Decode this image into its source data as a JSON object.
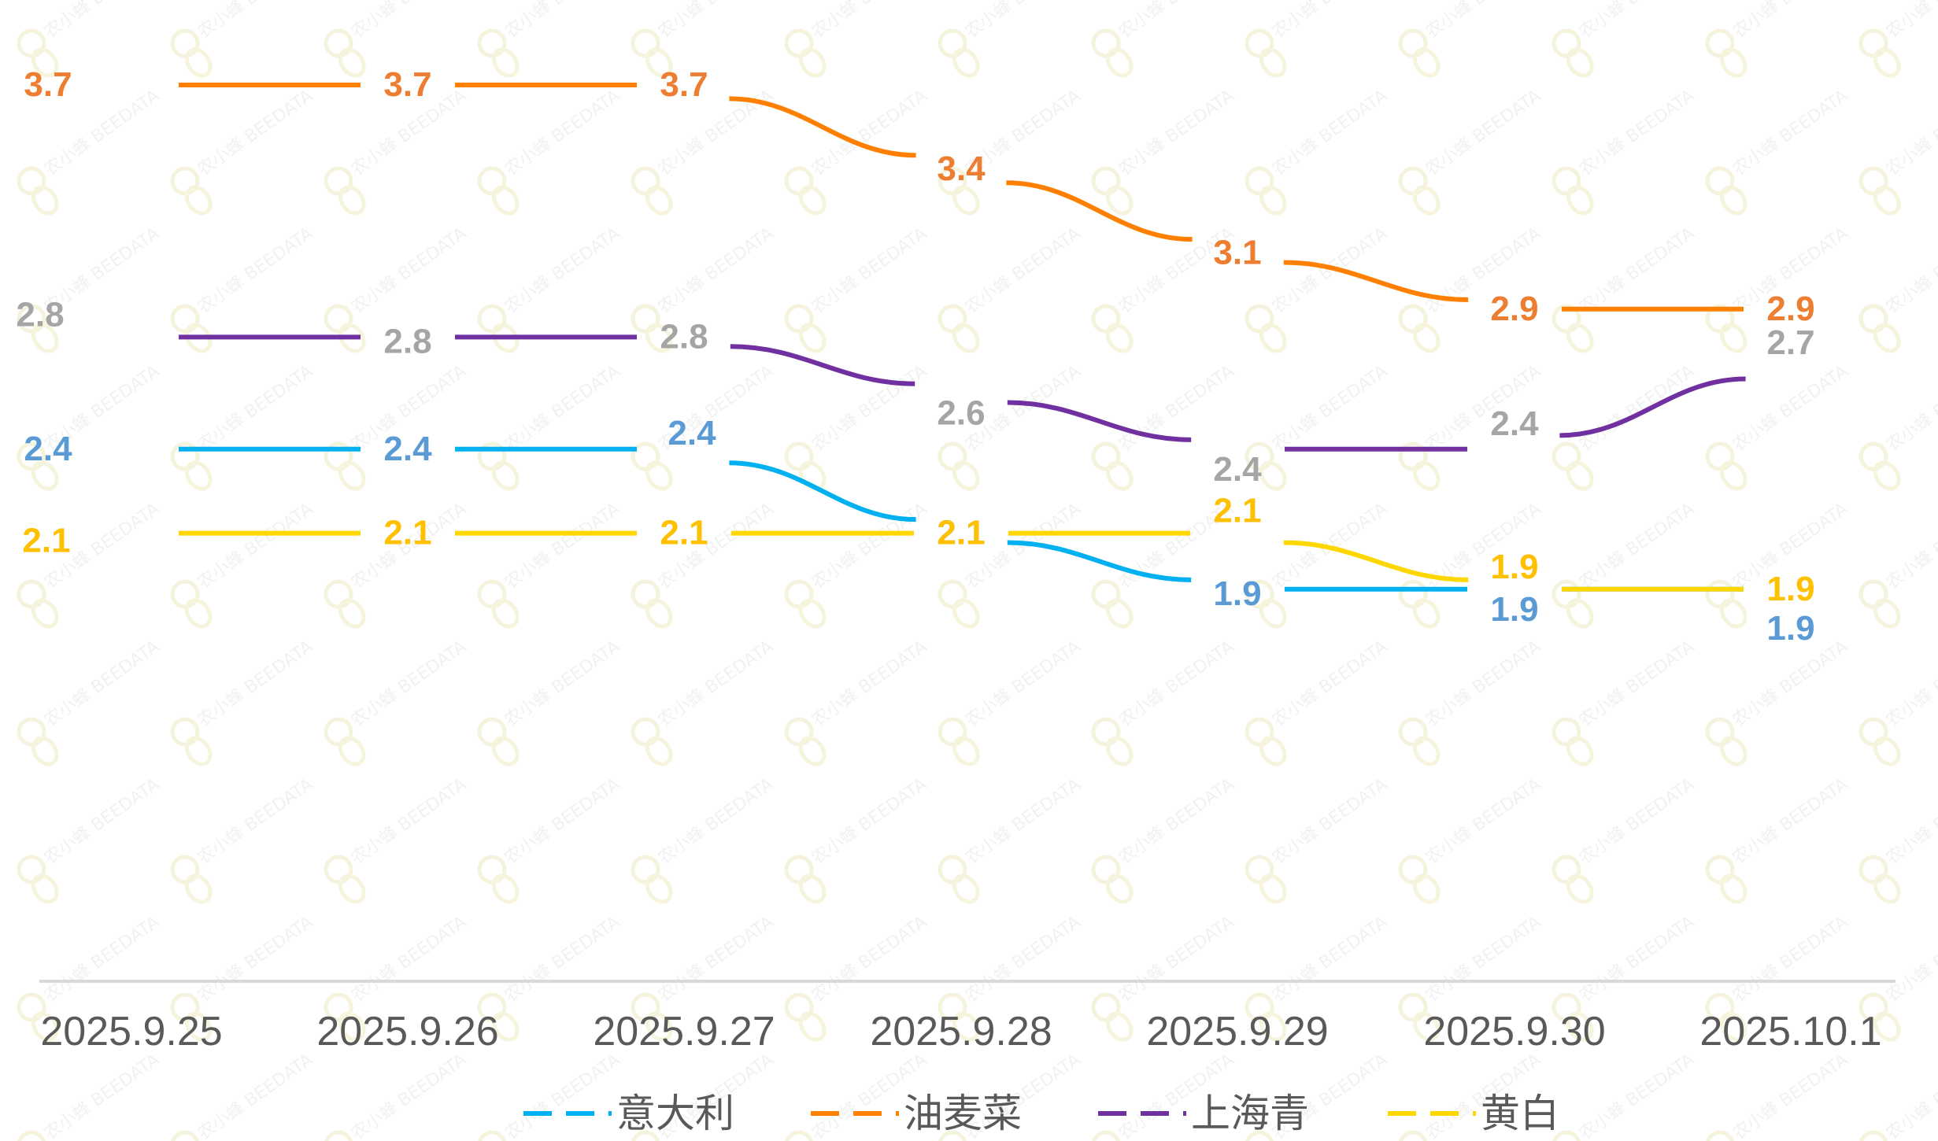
{
  "chart_data": {
    "type": "line",
    "title": "",
    "xlabel": "",
    "ylabel": "",
    "categories": [
      "2025.9.25",
      "2025.9.26",
      "2025.9.27",
      "2025.9.28",
      "2025.9.29",
      "2025.9.30",
      "2025.10.1"
    ],
    "ylim": [
      0.5,
      3.9
    ],
    "grid": false,
    "legend": "bottom",
    "series": [
      {
        "name": "意大利",
        "color": "#00B0F0",
        "label_color": "#5B9BD5",
        "values": [
          2.4,
          2.4,
          2.4,
          2.1,
          1.9,
          1.9,
          1.9
        ],
        "labels": [
          "2.4",
          "2.4",
          "2.4",
          "2.1",
          "1.9",
          "1.9",
          "1.9"
        ]
      },
      {
        "name": "油麦菜",
        "color": "#FF8000",
        "label_color": "#ED7D31",
        "values": [
          3.7,
          3.7,
          3.7,
          3.4,
          3.1,
          2.9,
          2.9
        ],
        "labels": [
          "3.7",
          "3.7",
          "3.7",
          "3.4",
          "3.1",
          "2.9",
          "2.9"
        ]
      },
      {
        "name": "上海青",
        "color": "#7030A0",
        "label_color": "#A5A5A5",
        "values": [
          2.8,
          2.8,
          2.8,
          2.6,
          2.4,
          2.4,
          2.7
        ],
        "labels": [
          "2.8",
          "2.8",
          "2.8",
          "2.6",
          "2.4",
          "2.4",
          "2.7"
        ]
      },
      {
        "name": "黄白",
        "color": "#FFD700",
        "label_color": "#FFC000",
        "values": [
          2.1,
          2.1,
          2.1,
          2.1,
          2.1,
          1.9,
          1.9
        ],
        "labels": [
          "2.1",
          "2.1",
          "2.1",
          "2.1",
          "2.1",
          "1.9",
          "1.9"
        ]
      }
    ]
  },
  "watermark": "农小蜂 BEEDATA"
}
